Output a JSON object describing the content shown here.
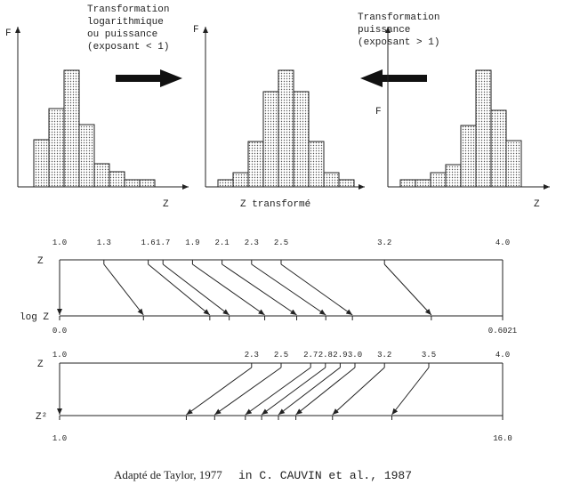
{
  "top": {
    "left_caption": [
      "Transformation",
      "logarithmique",
      "ou puissance",
      "(exposant < 1)"
    ],
    "right_caption": [
      "Transformation",
      "puissance",
      "(exposant > 1)"
    ],
    "panels": [
      {
        "y_label": "F",
        "x_label": "Z"
      },
      {
        "y_label": "F",
        "x_label": "Z transformé"
      },
      {
        "y_label": "F",
        "x_label": "Z"
      }
    ]
  },
  "scales": [
    {
      "top_label": "Z",
      "bottom_label": "log Z",
      "ticks": [
        {
          "value": 1.0,
          "label": "1.0"
        },
        {
          "value": 1.3,
          "label": "1.3"
        },
        {
          "value": 1.6,
          "label": "1.6"
        },
        {
          "value": 1.7,
          "label": "1.7"
        },
        {
          "value": 1.9,
          "label": "1.9"
        },
        {
          "value": 2.1,
          "label": "2.1"
        },
        {
          "value": 2.3,
          "label": "2.3"
        },
        {
          "value": 2.5,
          "label": "2.5"
        },
        {
          "value": 3.2,
          "label": "3.2"
        },
        {
          "value": 4.0,
          "label": "4.0"
        }
      ],
      "bottom_ticks": [
        {
          "value": 0,
          "label": "0.0"
        },
        {
          "value": 0.60206,
          "label": "0.6021"
        }
      ]
    },
    {
      "top_label": "Z",
      "bottom_label": "Z²",
      "ticks": [
        {
          "value": 1.0,
          "label": "1.0"
        },
        {
          "value": 2.3,
          "label": "2.3"
        },
        {
          "value": 2.5,
          "label": "2.5"
        },
        {
          "value": 2.7,
          "label": "2.7"
        },
        {
          "value": 2.8,
          "label": "2.8"
        },
        {
          "value": 2.9,
          "label": "2.9"
        },
        {
          "value": 3.0,
          "label": "3.0"
        },
        {
          "value": 3.2,
          "label": "3.2"
        },
        {
          "value": 3.5,
          "label": "3.5"
        },
        {
          "value": 4.0,
          "label": "4.0"
        }
      ],
      "bottom_ticks": [
        {
          "value": 1,
          "label": "1.0"
        },
        {
          "value": 16,
          "label": "16.0"
        }
      ]
    }
  ],
  "source": "Adapté de Taylor, 1977",
  "citation": "in C. CAUVIN et al., 1987"
}
